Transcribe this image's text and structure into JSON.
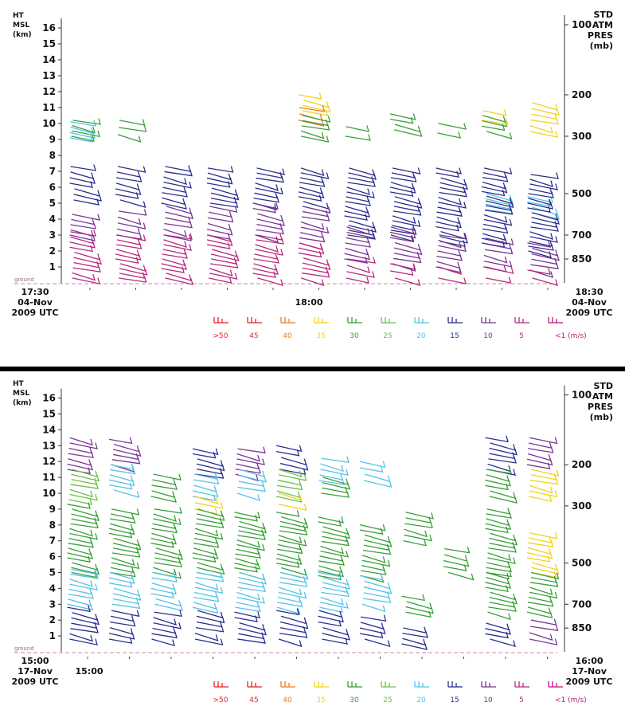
{
  "chart_data": [
    {
      "type": "wind-profile",
      "left_axis": {
        "label_lines": [
          "HT",
          "MSL",
          "(km)"
        ],
        "ticks": [
          1,
          2,
          3,
          4,
          5,
          6,
          7,
          8,
          9,
          10,
          11,
          12,
          13,
          14,
          15,
          16
        ],
        "ylim": [
          0,
          16.5
        ]
      },
      "right_axis": {
        "label_lines": [
          "STD",
          "ATM",
          "PRES",
          "(mb)"
        ],
        "ticks": [
          100,
          200,
          300,
          500,
          700,
          850
        ]
      },
      "ground_label": "ground",
      "start_label": [
        "17:30",
        "04-Nov",
        "2009 UTC"
      ],
      "end_label": [
        "18:30",
        "04-Nov",
        "2009 UTC"
      ],
      "center_time_label": "18:00",
      "legend": [
        {
          "label": ">50",
          "color": "#e8212b"
        },
        {
          "label": "45",
          "color": "#e8212b"
        },
        {
          "label": "40",
          "color": "#ee7a1c"
        },
        {
          "label": "35",
          "color": "#f2d21a"
        },
        {
          "label": "30",
          "color": "#3a9e3a"
        },
        {
          "label": "25",
          "color": "#6cc04a"
        },
        {
          "label": "20",
          "color": "#55c3e6"
        },
        {
          "label": "15",
          "color": "#2a2e8c"
        },
        {
          "label": "10",
          "color": "#7a3595"
        },
        {
          "label": "5",
          "color": "#b8287f"
        },
        {
          "label": "<1 (m/s)",
          "color": "#c0127f"
        }
      ],
      "profiles": [
        {
          "bands": [
            {
              "h": [
                9.1,
                10.1
              ],
              "c": "#55c3e6"
            },
            {
              "h": [
                9.2,
                10.2
              ],
              "c": "#3a9e3a"
            },
            {
              "h": [
                5.2,
                7.3
              ],
              "c": "#2a2e8c"
            },
            {
              "h": [
                3.0,
                4.3
              ],
              "c": "#7a3595"
            },
            {
              "h": [
                0.3,
                3.2
              ],
              "c": "#b8287f"
            }
          ]
        },
        {
          "bands": [
            {
              "h": [
                9.3,
                10.2
              ],
              "c": "#3a9e3a"
            },
            {
              "h": [
                5.2,
                7.3
              ],
              "c": "#2a2e8c"
            },
            {
              "h": [
                3.0,
                4.5
              ],
              "c": "#7a3595"
            },
            {
              "h": [
                0.3,
                3.0
              ],
              "c": "#b8287f"
            }
          ]
        },
        {
          "bands": [
            {
              "h": [
                5.0,
                7.3
              ],
              "c": "#2a2e8c"
            },
            {
              "h": [
                3.0,
                4.8
              ],
              "c": "#7a3595"
            },
            {
              "h": [
                0.3,
                3.0
              ],
              "c": "#b8287f"
            }
          ]
        },
        {
          "bands": [
            {
              "h": [
                5.0,
                7.2
              ],
              "c": "#2a2e8c"
            },
            {
              "h": [
                3.0,
                4.8
              ],
              "c": "#7a3595"
            },
            {
              "h": [
                0.3,
                3.0
              ],
              "c": "#b8287f"
            }
          ]
        },
        {
          "bands": [
            {
              "h": [
                5.0,
                7.2
              ],
              "c": "#2a2e8c"
            },
            {
              "h": [
                3.0,
                5.0
              ],
              "c": "#7a3595"
            },
            {
              "h": [
                0.3,
                3.0
              ],
              "c": "#b8287f"
            }
          ]
        },
        {
          "bands": [
            {
              "h": [
                10.8,
                11.8
              ],
              "c": "#f2d21a"
            },
            {
              "h": [
                10.2,
                11.0
              ],
              "c": "#ee7a1c"
            },
            {
              "h": [
                9.2,
                10.5
              ],
              "c": "#3a9e3a"
            },
            {
              "h": [
                4.8,
                7.2
              ],
              "c": "#2a2e8c"
            },
            {
              "h": [
                2.5,
                4.8
              ],
              "c": "#7a3595"
            },
            {
              "h": [
                0.3,
                2.5
              ],
              "c": "#b8287f"
            }
          ]
        },
        {
          "bands": [
            {
              "h": [
                9.2,
                9.8
              ],
              "c": "#3a9e3a"
            },
            {
              "h": [
                3.0,
                7.2
              ],
              "c": "#2a2e8c"
            },
            {
              "h": [
                1.5,
                3.5
              ],
              "c": "#7a3595"
            },
            {
              "h": [
                0.3,
                1.5
              ],
              "c": "#b8287f"
            }
          ]
        },
        {
          "bands": [
            {
              "h": [
                9.6,
                10.6
              ],
              "c": "#3a9e3a"
            },
            {
              "h": [
                3.0,
                7.2
              ],
              "c": "#2a2e8c"
            },
            {
              "h": [
                1.2,
                3.5
              ],
              "c": "#7a3595"
            },
            {
              "h": [
                0.3,
                1.2
              ],
              "c": "#b8287f"
            }
          ]
        },
        {
          "bands": [
            {
              "h": [
                9.4,
                10.0
              ],
              "c": "#3a9e3a"
            },
            {
              "h": [
                2.6,
                7.2
              ],
              "c": "#2a2e8c"
            },
            {
              "h": [
                1.0,
                3.0
              ],
              "c": "#7a3595"
            },
            {
              "h": [
                0.3,
                1.0
              ],
              "c": "#b8287f"
            }
          ]
        },
        {
          "bands": [
            {
              "h": [
                9.5,
                10.5
              ],
              "c": "#3a9e3a"
            },
            {
              "h": [
                10.2,
                10.8
              ],
              "c": "#f2d21a"
            },
            {
              "h": [
                4.6,
                5.6
              ],
              "c": "#55c3e6"
            },
            {
              "h": [
                2.5,
                7.2
              ],
              "c": "#2a2e8c"
            },
            {
              "h": [
                1.0,
                2.8
              ],
              "c": "#7a3595"
            },
            {
              "h": [
                0.3,
                1.0
              ],
              "c": "#b8287f"
            }
          ]
        },
        {
          "bands": [
            {
              "h": [
                9.5,
                11.3
              ],
              "c": "#f2d21a"
            },
            {
              "h": [
                4.4,
                5.4
              ],
              "c": "#55c3e6"
            },
            {
              "h": [
                2.0,
                6.8
              ],
              "c": "#2a2e8c"
            },
            {
              "h": [
                0.8,
                2.5
              ],
              "c": "#7a3595"
            },
            {
              "h": [
                0.3,
                0.8
              ],
              "c": "#b8287f"
            }
          ]
        }
      ]
    },
    {
      "type": "wind-profile",
      "left_axis": {
        "label_lines": [
          "HT",
          "MSL",
          "(km)"
        ],
        "ticks": [
          1,
          2,
          3,
          4,
          5,
          6,
          7,
          8,
          9,
          10,
          11,
          12,
          13,
          14,
          15,
          16
        ],
        "ylim": [
          0,
          16.5
        ]
      },
      "right_axis": {
        "label_lines": [
          "STD",
          "ATM",
          "PRES",
          "(mb)"
        ],
        "ticks": [
          100,
          200,
          300,
          500,
          700,
          850
        ]
      },
      "ground_label": "ground",
      "start_label": [
        "15:00",
        "17-Nov",
        "2009 UTC"
      ],
      "end_label": [
        "16:00",
        "17-Nov",
        "2009 UTC"
      ],
      "center_time_label": "15:00",
      "legend": [
        {
          "label": ">50",
          "color": "#e8212b"
        },
        {
          "label": "45",
          "color": "#e8212b"
        },
        {
          "label": "40",
          "color": "#ee7a1c"
        },
        {
          "label": "35",
          "color": "#f2d21a"
        },
        {
          "label": "30",
          "color": "#3a9e3a"
        },
        {
          "label": "25",
          "color": "#6cc04a"
        },
        {
          "label": "20",
          "color": "#55c3e6"
        },
        {
          "label": "15",
          "color": "#2a2e8c"
        },
        {
          "label": "10",
          "color": "#7a3595"
        },
        {
          "label": "5",
          "color": "#b8287f"
        },
        {
          "label": "<1 (m/s)",
          "color": "#c0127f"
        }
      ],
      "profiles": [
        {
          "bands": [
            {
              "h": [
                11.5,
                13.5
              ],
              "c": "#7a3595"
            },
            {
              "h": [
                9.6,
                11.5
              ],
              "c": "#6cc04a"
            },
            {
              "h": [
                5.0,
                9.3
              ],
              "c": "#3a9e3a"
            },
            {
              "h": [
                3.0,
                5.2
              ],
              "c": "#55c3e6"
            },
            {
              "h": [
                0.8,
                2.8
              ],
              "c": "#2a2e8c"
            }
          ]
        },
        {
          "bands": [
            {
              "h": [
                11.8,
                13.4
              ],
              "c": "#7a3595"
            },
            {
              "h": [
                10.2,
                11.8
              ],
              "c": "#55c3e6"
            },
            {
              "h": [
                5.0,
                9.0
              ],
              "c": "#3a9e3a"
            },
            {
              "h": [
                3.0,
                5.0
              ],
              "c": "#55c3e6"
            },
            {
              "h": [
                0.8,
                2.6
              ],
              "c": "#2a2e8c"
            }
          ]
        },
        {
          "bands": [
            {
              "h": [
                9.8,
                11.2
              ],
              "c": "#3a9e3a"
            },
            {
              "h": [
                5.0,
                9.0
              ],
              "c": "#3a9e3a"
            },
            {
              "h": [
                3.0,
                5.0
              ],
              "c": "#55c3e6"
            },
            {
              "h": [
                0.8,
                2.5
              ],
              "c": "#2a2e8c"
            }
          ]
        },
        {
          "bands": [
            {
              "h": [
                11.2,
                12.8
              ],
              "c": "#2a2e8c"
            },
            {
              "h": [
                9.8,
                11.2
              ],
              "c": "#55c3e6"
            },
            {
              "h": [
                9.0,
                9.8
              ],
              "c": "#f2d21a"
            },
            {
              "h": [
                5.0,
                9.0
              ],
              "c": "#3a9e3a"
            },
            {
              "h": [
                2.8,
                5.0
              ],
              "c": "#55c3e6"
            },
            {
              "h": [
                0.8,
                2.6
              ],
              "c": "#2a2e8c"
            }
          ]
        },
        {
          "bands": [
            {
              "h": [
                11.2,
                12.8
              ],
              "c": "#7a3595"
            },
            {
              "h": [
                10.0,
                11.5
              ],
              "c": "#55c3e6"
            },
            {
              "h": [
                5.0,
                8.8
              ],
              "c": "#3a9e3a"
            },
            {
              "h": [
                2.8,
                5.0
              ],
              "c": "#55c3e6"
            },
            {
              "h": [
                0.8,
                2.5
              ],
              "c": "#2a2e8c"
            }
          ]
        },
        {
          "bands": [
            {
              "h": [
                11.5,
                13.0
              ],
              "c": "#2a2e8c"
            },
            {
              "h": [
                9.8,
                11.5
              ],
              "c": "#6cc04a"
            },
            {
              "h": [
                9.3,
                10.0
              ],
              "c": "#f2d21a"
            },
            {
              "h": [
                5.0,
                8.8
              ],
              "c": "#3a9e3a"
            },
            {
              "h": [
                2.8,
                5.0
              ],
              "c": "#55c3e6"
            },
            {
              "h": [
                0.8,
                2.6
              ],
              "c": "#2a2e8c"
            }
          ]
        },
        {
          "bands": [
            {
              "h": [
                10.8,
                12.2
              ],
              "c": "#55c3e6"
            },
            {
              "h": [
                10.0,
                11.0
              ],
              "c": "#3a9e3a"
            },
            {
              "h": [
                4.8,
                8.5
              ],
              "c": "#3a9e3a"
            },
            {
              "h": [
                2.8,
                5.0
              ],
              "c": "#55c3e6"
            },
            {
              "h": [
                0.8,
                2.6
              ],
              "c": "#2a2e8c"
            }
          ]
        },
        {
          "bands": [
            {
              "h": [
                10.8,
                12.0
              ],
              "c": "#55c3e6"
            },
            {
              "h": [
                4.8,
                8.0
              ],
              "c": "#3a9e3a"
            },
            {
              "h": [
                3.0,
                4.8
              ],
              "c": "#55c3e6"
            },
            {
              "h": [
                0.8,
                2.2
              ],
              "c": "#2a2e8c"
            }
          ]
        },
        {
          "bands": [
            {
              "h": [
                7.0,
                8.8
              ],
              "c": "#3a9e3a"
            },
            {
              "h": [
                2.5,
                3.5
              ],
              "c": "#3a9e3a"
            },
            {
              "h": [
                0.5,
                1.5
              ],
              "c": "#2a2e8c"
            }
          ]
        },
        {
          "bands": [
            {
              "h": [
                5.0,
                6.5
              ],
              "c": "#3a9e3a"
            }
          ]
        },
        {
          "bands": [
            {
              "h": [
                11.5,
                13.5
              ],
              "c": "#2a2e8c"
            },
            {
              "h": [
                9.8,
                11.5
              ],
              "c": "#3a9e3a"
            },
            {
              "h": [
                5.0,
                9.0
              ],
              "c": "#3a9e3a"
            },
            {
              "h": [
                2.5,
                5.0
              ],
              "c": "#3a9e3a"
            },
            {
              "h": [
                0.8,
                1.8
              ],
              "c": "#2a2e8c"
            }
          ]
        },
        {
          "bands": [
            {
              "h": [
                11.8,
                13.5
              ],
              "c": "#7a3595"
            },
            {
              "h": [
                9.8,
                11.5
              ],
              "c": "#f2d21a"
            },
            {
              "h": [
                5.0,
                7.5
              ],
              "c": "#f2d21a"
            },
            {
              "h": [
                2.5,
                5.0
              ],
              "c": "#3a9e3a"
            },
            {
              "h": [
                0.8,
                2.0
              ],
              "c": "#7a3595"
            }
          ]
        }
      ]
    }
  ]
}
